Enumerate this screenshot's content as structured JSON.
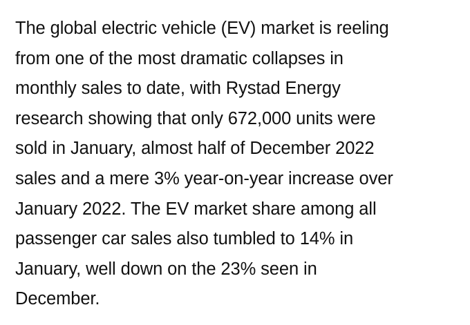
{
  "article": {
    "lines": [
      "The global electric vehicle (EV) market is reeling",
      "from one of the most dramatic collapses in",
      "monthly sales to date, with Rystad Energy",
      "research showing that only 672,000 units were",
      "sold in January, almost half of December 2022",
      "sales and a mere 3% year-on-year increase over",
      "January 2022. The EV market share among all",
      "passenger car sales also tumbled to 14% in",
      "January, well down on the 23% seen in",
      "December."
    ]
  },
  "colors": {
    "background": "#ffffff",
    "text": "#111111"
  }
}
